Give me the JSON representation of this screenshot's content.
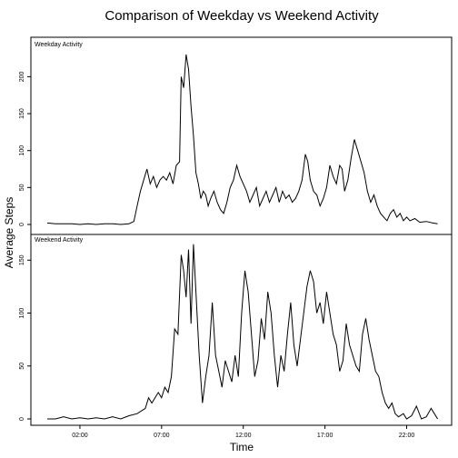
{
  "chart_data": {
    "type": "line",
    "title": "Comparison of Weekday vs Weekend Activity",
    "xlabel": "Time",
    "ylabel": "Average Steps",
    "x_tick_labels": [
      "02:00",
      "07:00",
      "12:00",
      "17:00",
      "22:00"
    ],
    "x_tick_hours": [
      2,
      7,
      12,
      17,
      22
    ],
    "xlim": [
      0,
      23.92
    ],
    "legend": "none",
    "grid": false,
    "line_color": "#000000",
    "panels": [
      {
        "name": "Weekday Activity",
        "ylim": [
          0,
          230
        ],
        "y_ticks": [
          0,
          50,
          100,
          150,
          200
        ],
        "points": [
          [
            0,
            2
          ],
          [
            0.5,
            1
          ],
          [
            1,
            1
          ],
          [
            1.5,
            1
          ],
          [
            2,
            0
          ],
          [
            2.5,
            1
          ],
          [
            3,
            0
          ],
          [
            3.5,
            1
          ],
          [
            4,
            1
          ],
          [
            4.5,
            0
          ],
          [
            5,
            1
          ],
          [
            5.3,
            4
          ],
          [
            5.5,
            25
          ],
          [
            5.7,
            45
          ],
          [
            5.9,
            60
          ],
          [
            6.1,
            75
          ],
          [
            6.3,
            55
          ],
          [
            6.5,
            65
          ],
          [
            6.7,
            50
          ],
          [
            6.9,
            60
          ],
          [
            7.1,
            65
          ],
          [
            7.3,
            60
          ],
          [
            7.5,
            70
          ],
          [
            7.7,
            55
          ],
          [
            7.9,
            80
          ],
          [
            8.1,
            85
          ],
          [
            8.2,
            200
          ],
          [
            8.35,
            185
          ],
          [
            8.5,
            230
          ],
          [
            8.65,
            210
          ],
          [
            8.8,
            160
          ],
          [
            8.95,
            120
          ],
          [
            9.1,
            70
          ],
          [
            9.25,
            55
          ],
          [
            9.4,
            35
          ],
          [
            9.55,
            45
          ],
          [
            9.7,
            40
          ],
          [
            9.85,
            25
          ],
          [
            10,
            35
          ],
          [
            10.2,
            45
          ],
          [
            10.4,
            30
          ],
          [
            10.6,
            20
          ],
          [
            10.8,
            15
          ],
          [
            11,
            30
          ],
          [
            11.2,
            50
          ],
          [
            11.4,
            60
          ],
          [
            11.6,
            80
          ],
          [
            11.8,
            65
          ],
          [
            12,
            55
          ],
          [
            12.2,
            45
          ],
          [
            12.4,
            30
          ],
          [
            12.6,
            40
          ],
          [
            12.8,
            50
          ],
          [
            13,
            25
          ],
          [
            13.2,
            35
          ],
          [
            13.4,
            45
          ],
          [
            13.6,
            30
          ],
          [
            13.8,
            40
          ],
          [
            14,
            50
          ],
          [
            14.2,
            30
          ],
          [
            14.4,
            45
          ],
          [
            14.6,
            35
          ],
          [
            14.8,
            40
          ],
          [
            15,
            30
          ],
          [
            15.2,
            35
          ],
          [
            15.4,
            45
          ],
          [
            15.6,
            60
          ],
          [
            15.8,
            95
          ],
          [
            15.95,
            85
          ],
          [
            16.1,
            60
          ],
          [
            16.3,
            45
          ],
          [
            16.5,
            40
          ],
          [
            16.7,
            25
          ],
          [
            16.9,
            35
          ],
          [
            17.1,
            50
          ],
          [
            17.3,
            80
          ],
          [
            17.5,
            65
          ],
          [
            17.7,
            55
          ],
          [
            17.9,
            80
          ],
          [
            18.05,
            75
          ],
          [
            18.2,
            45
          ],
          [
            18.4,
            60
          ],
          [
            18.6,
            90
          ],
          [
            18.8,
            115
          ],
          [
            19,
            100
          ],
          [
            19.2,
            85
          ],
          [
            19.4,
            70
          ],
          [
            19.6,
            45
          ],
          [
            19.8,
            30
          ],
          [
            20,
            40
          ],
          [
            20.2,
            25
          ],
          [
            20.4,
            15
          ],
          [
            20.6,
            10
          ],
          [
            20.8,
            5
          ],
          [
            21,
            15
          ],
          [
            21.2,
            20
          ],
          [
            21.4,
            10
          ],
          [
            21.6,
            15
          ],
          [
            21.8,
            5
          ],
          [
            22,
            10
          ],
          [
            22.2,
            5
          ],
          [
            22.5,
            8
          ],
          [
            22.8,
            3
          ],
          [
            23.2,
            4
          ],
          [
            23.6,
            2
          ],
          [
            23.9,
            1
          ]
        ]
      },
      {
        "name": "Weekend Activity",
        "ylim": [
          0,
          170
        ],
        "y_ticks": [
          0,
          50,
          100,
          150
        ],
        "points": [
          [
            0,
            0
          ],
          [
            0.5,
            0
          ],
          [
            1,
            2
          ],
          [
            1.5,
            0
          ],
          [
            2,
            1
          ],
          [
            2.5,
            0
          ],
          [
            3,
            1
          ],
          [
            3.5,
            0
          ],
          [
            4,
            2
          ],
          [
            4.5,
            0
          ],
          [
            5,
            3
          ],
          [
            5.5,
            5
          ],
          [
            6,
            10
          ],
          [
            6.2,
            20
          ],
          [
            6.4,
            15
          ],
          [
            6.6,
            20
          ],
          [
            6.8,
            25
          ],
          [
            7,
            20
          ],
          [
            7.2,
            30
          ],
          [
            7.4,
            25
          ],
          [
            7.6,
            40
          ],
          [
            7.8,
            85
          ],
          [
            8,
            80
          ],
          [
            8.2,
            155
          ],
          [
            8.35,
            140
          ],
          [
            8.5,
            115
          ],
          [
            8.65,
            160
          ],
          [
            8.8,
            90
          ],
          [
            8.95,
            165
          ],
          [
            9.1,
            120
          ],
          [
            9.3,
            60
          ],
          [
            9.5,
            15
          ],
          [
            9.7,
            40
          ],
          [
            9.9,
            60
          ],
          [
            10.1,
            110
          ],
          [
            10.3,
            60
          ],
          [
            10.5,
            45
          ],
          [
            10.7,
            30
          ],
          [
            10.9,
            55
          ],
          [
            11.1,
            45
          ],
          [
            11.3,
            35
          ],
          [
            11.5,
            60
          ],
          [
            11.7,
            40
          ],
          [
            11.9,
            100
          ],
          [
            12.1,
            140
          ],
          [
            12.3,
            120
          ],
          [
            12.5,
            80
          ],
          [
            12.7,
            40
          ],
          [
            12.9,
            55
          ],
          [
            13.1,
            95
          ],
          [
            13.3,
            75
          ],
          [
            13.5,
            120
          ],
          [
            13.7,
            100
          ],
          [
            13.9,
            60
          ],
          [
            14.1,
            30
          ],
          [
            14.3,
            60
          ],
          [
            14.5,
            45
          ],
          [
            14.7,
            80
          ],
          [
            14.9,
            110
          ],
          [
            15.1,
            70
          ],
          [
            15.3,
            50
          ],
          [
            15.5,
            75
          ],
          [
            15.7,
            100
          ],
          [
            15.9,
            125
          ],
          [
            16.1,
            140
          ],
          [
            16.3,
            130
          ],
          [
            16.5,
            100
          ],
          [
            16.7,
            110
          ],
          [
            16.9,
            90
          ],
          [
            17.1,
            120
          ],
          [
            17.3,
            100
          ],
          [
            17.5,
            80
          ],
          [
            17.7,
            70
          ],
          [
            17.9,
            45
          ],
          [
            18.1,
            55
          ],
          [
            18.3,
            90
          ],
          [
            18.5,
            70
          ],
          [
            18.7,
            60
          ],
          [
            18.9,
            50
          ],
          [
            19.1,
            45
          ],
          [
            19.3,
            80
          ],
          [
            19.5,
            95
          ],
          [
            19.7,
            75
          ],
          [
            19.9,
            60
          ],
          [
            20.1,
            45
          ],
          [
            20.3,
            40
          ],
          [
            20.5,
            25
          ],
          [
            20.7,
            15
          ],
          [
            20.9,
            10
          ],
          [
            21.1,
            15
          ],
          [
            21.3,
            5
          ],
          [
            21.5,
            2
          ],
          [
            21.8,
            5
          ],
          [
            22,
            0
          ],
          [
            22.3,
            3
          ],
          [
            22.6,
            12
          ],
          [
            22.9,
            0
          ],
          [
            23.2,
            2
          ],
          [
            23.5,
            10
          ],
          [
            23.7,
            5
          ],
          [
            23.9,
            0
          ]
        ]
      }
    ]
  }
}
